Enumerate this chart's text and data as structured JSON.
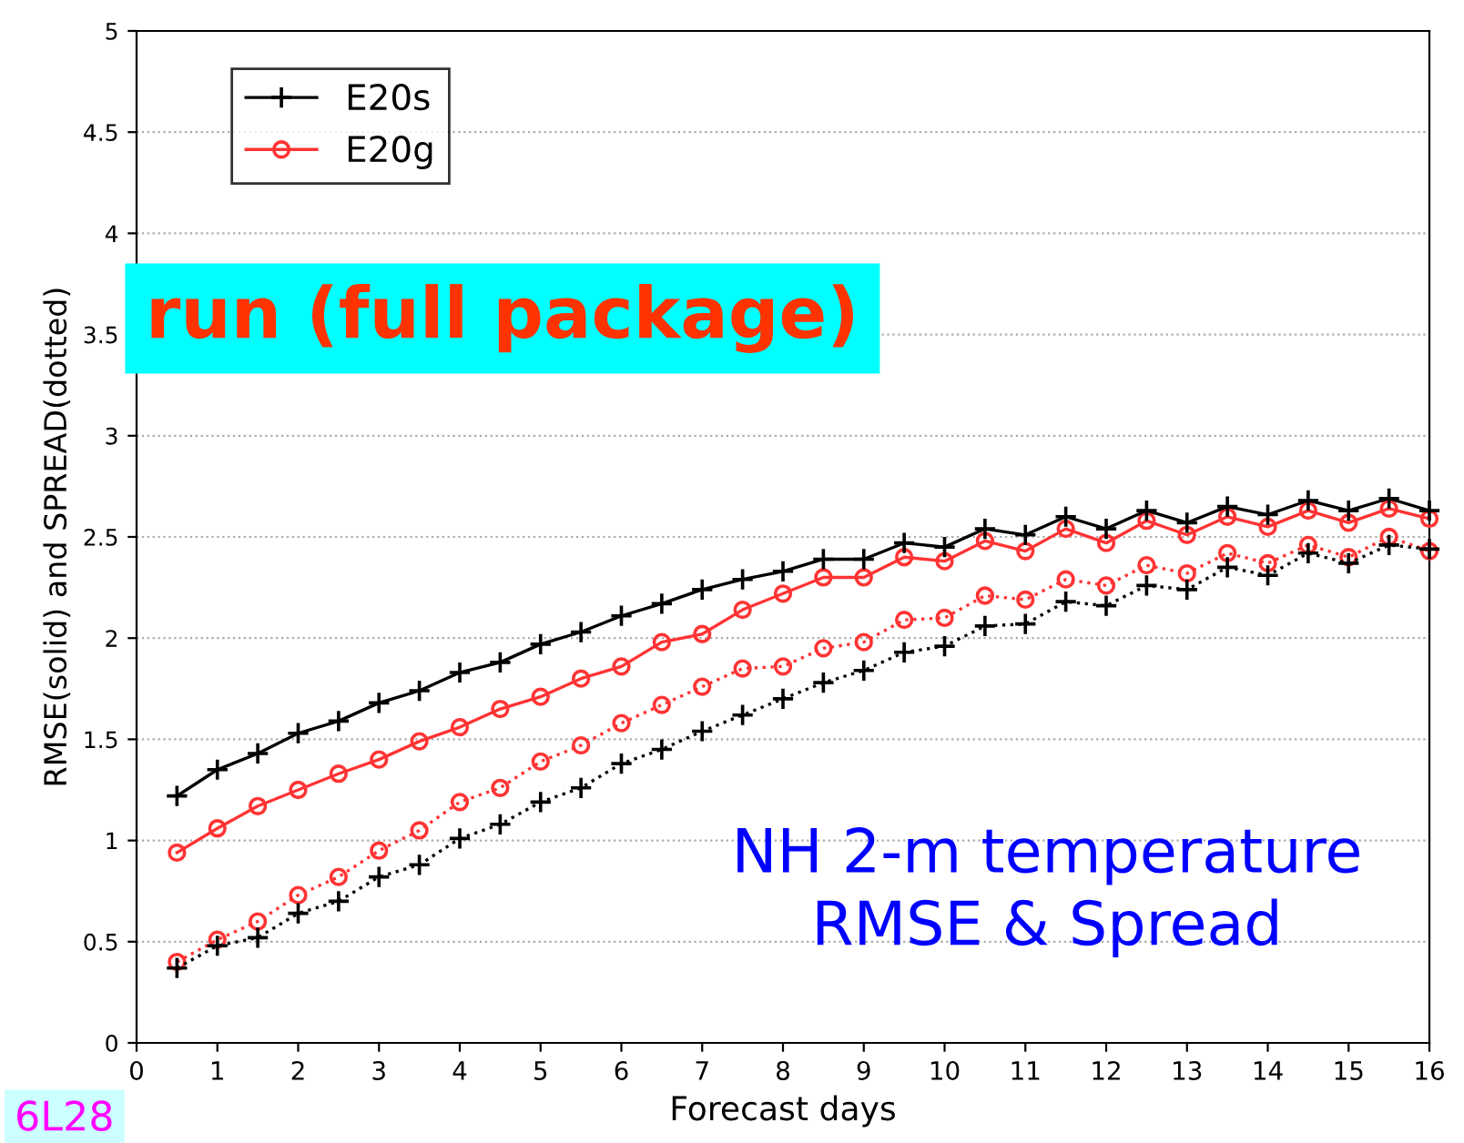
{
  "chart_data": {
    "type": "line",
    "xlabel": "Forecast days",
    "ylabel": "RMSE(solid) and SPREAD(dotted)",
    "x": [
      0.5,
      1,
      1.5,
      2,
      2.5,
      3,
      3.5,
      4,
      4.5,
      5,
      5.5,
      6,
      6.5,
      7,
      7.5,
      8,
      8.5,
      9,
      9.5,
      10,
      10.5,
      11,
      11.5,
      12,
      12.5,
      13,
      13.5,
      14,
      14.5,
      15,
      15.5,
      16
    ],
    "series": [
      {
        "name": "E20s",
        "color": "#000000",
        "marker": "cross",
        "line_style": "solid",
        "values": [
          1.22,
          1.35,
          1.43,
          1.53,
          1.59,
          1.68,
          1.74,
          1.83,
          1.88,
          1.97,
          2.03,
          2.11,
          2.17,
          2.24,
          2.29,
          2.33,
          2.39,
          2.39,
          2.47,
          2.45,
          2.54,
          2.51,
          2.6,
          2.54,
          2.63,
          2.57,
          2.65,
          2.61,
          2.68,
          2.63,
          2.69,
          2.63
        ]
      },
      {
        "name": "E20g",
        "color": "#ff3333",
        "marker": "circle",
        "line_style": "solid",
        "values": [
          0.94,
          1.06,
          1.17,
          1.25,
          1.33,
          1.4,
          1.49,
          1.56,
          1.65,
          1.71,
          1.8,
          1.86,
          1.98,
          2.02,
          2.14,
          2.22,
          2.3,
          2.3,
          2.4,
          2.38,
          2.48,
          2.43,
          2.54,
          2.47,
          2.58,
          2.51,
          2.6,
          2.55,
          2.63,
          2.57,
          2.64,
          2.59
        ]
      },
      {
        "color": "#ff3333",
        "marker": "circle",
        "line_style": "dotted",
        "values": [
          0.4,
          0.51,
          0.6,
          0.73,
          0.82,
          0.95,
          1.05,
          1.19,
          1.26,
          1.39,
          1.47,
          1.58,
          1.67,
          1.76,
          1.85,
          1.86,
          1.95,
          1.98,
          2.09,
          2.1,
          2.21,
          2.19,
          2.29,
          2.26,
          2.36,
          2.32,
          2.42,
          2.37,
          2.46,
          2.4,
          2.5,
          2.43
        ]
      },
      {
        "color": "#000000",
        "marker": "cross",
        "line_style": "dotted",
        "values": [
          0.37,
          0.48,
          0.52,
          0.64,
          0.7,
          0.82,
          0.88,
          1.01,
          1.08,
          1.19,
          1.26,
          1.38,
          1.45,
          1.54,
          1.62,
          1.7,
          1.78,
          1.84,
          1.93,
          1.96,
          2.06,
          2.07,
          2.18,
          2.16,
          2.26,
          2.24,
          2.35,
          2.31,
          2.42,
          2.37,
          2.46,
          2.44
        ]
      }
    ],
    "xlim": [
      0,
      16
    ],
    "xticks": [
      0,
      1,
      2,
      3,
      4,
      5,
      6,
      7,
      8,
      9,
      10,
      11,
      12,
      13,
      14,
      15,
      16
    ],
    "ylim": [
      0,
      5
    ],
    "yticks": [
      0,
      0.5,
      1,
      1.5,
      2,
      2.5,
      3,
      3.5,
      4,
      4.5,
      5
    ],
    "grid": "y",
    "legend": "top left",
    "annotations": [
      "run (full package)",
      "NH 2-m temperature\nRMSE & Spread",
      "6L28"
    ]
  }
}
